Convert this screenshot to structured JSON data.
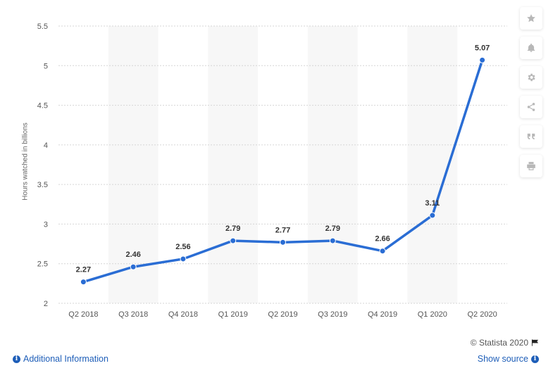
{
  "chart_data": {
    "type": "line",
    "categories": [
      "Q2 2018",
      "Q3 2018",
      "Q4 2018",
      "Q1 2019",
      "Q2 2019",
      "Q3 2019",
      "Q4 2019",
      "Q1 2020",
      "Q2 2020"
    ],
    "series": [
      {
        "values": [
          2.27,
          2.46,
          2.56,
          2.79,
          2.77,
          2.79,
          2.66,
          3.11,
          5.07
        ]
      }
    ],
    "ylabel": "Hours watched in billions",
    "ylim": [
      2,
      5.5
    ],
    "yticks": [
      "2",
      "2.5",
      "3",
      "3.5",
      "4",
      "4.5",
      "5",
      "5.5"
    ],
    "grid": true,
    "data_labels": [
      "2.27",
      "2.46",
      "2.56",
      "2.79",
      "2.77",
      "2.79",
      "2.66",
      "3.11",
      "5.07"
    ],
    "line_color": "#2a6dd4",
    "band_color": "#f7f7f7"
  },
  "footer": {
    "copyright": "© Statista 2020",
    "additional_info": "Additional Information",
    "show_source": "Show source"
  },
  "toolbar": {
    "icons": [
      "star-icon",
      "bell-icon",
      "gear-icon",
      "share-icon",
      "quote-icon",
      "print-icon"
    ]
  }
}
